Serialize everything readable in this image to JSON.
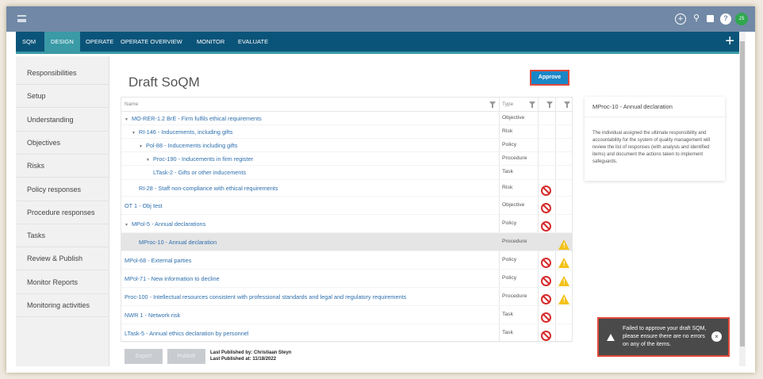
{
  "topbar": {
    "icons": [
      "plus-circle-icon",
      "search-icon",
      "chat-icon",
      "help-icon"
    ],
    "avatar": "JS",
    "avatar_color": "#2fa84f"
  },
  "nav": {
    "tabs": [
      "SQM",
      "DESIGN",
      "OPERATE",
      "OPERATE OVERVIEW",
      "MONITOR",
      "EVALUATE"
    ],
    "active": "DESIGN",
    "add": "+"
  },
  "sidebar": {
    "items": [
      "Responsibilities",
      "Setup",
      "Understanding",
      "Objectives",
      "Risks",
      "Policy responses",
      "Procedure responses",
      "Tasks",
      "Review & Publish",
      "Monitor Reports",
      "Monitoring activities"
    ]
  },
  "main": {
    "title": "Draft SoQM",
    "approve_label": "Approve",
    "table": {
      "headers": {
        "name": "Name",
        "type": "Type"
      },
      "rows": [
        {
          "name": "MO-RER-1.2 BrE - Firm fulfils ethical requirements",
          "type": "Objective",
          "level": 0,
          "expanded": true,
          "error": false,
          "warning": false
        },
        {
          "name": "RI-146 - Inducements, including gifts",
          "type": "Risk",
          "level": 1,
          "expanded": true,
          "error": false,
          "warning": false
        },
        {
          "name": "Pol-88 - Inducements including gifts",
          "type": "Policy",
          "level": 2,
          "expanded": true,
          "error": false,
          "warning": false
        },
        {
          "name": "Proc-190 - Inducements in firm register",
          "type": "Procedure",
          "level": 3,
          "expanded": true,
          "error": false,
          "warning": false
        },
        {
          "name": "LTask-2 - Gifts or other inducements",
          "type": "Task",
          "level": 4,
          "error": false,
          "warning": false
        },
        {
          "name": "RI-28 - Staff non-compliance with ethical requirements",
          "type": "Risk",
          "level": 1,
          "error": true,
          "warning": false
        },
        {
          "name": "OT 1 - Obj test",
          "type": "Objective",
          "level": 0,
          "error": true,
          "warning": false
        },
        {
          "name": "MPol-5 - Annual declarations",
          "type": "Policy",
          "level": 0,
          "expanded": true,
          "error": true,
          "warning": false
        },
        {
          "name": "MProc-10 - Annual declaration",
          "type": "Procedure",
          "level": 1,
          "error": false,
          "warning": true,
          "selected": true
        },
        {
          "name": "MPol-68 - External parties",
          "type": "Policy",
          "level": 0,
          "error": true,
          "warning": true
        },
        {
          "name": "MPol-71 - New information to decline",
          "type": "Policy",
          "level": 0,
          "error": true,
          "warning": true
        },
        {
          "name": "Proc-100 - Intellectual resources consistent with professional standards and legal and regulatory requirements",
          "type": "Procedure",
          "level": 0,
          "error": true,
          "warning": true
        },
        {
          "name": "NWR 1 - Network risk",
          "type": "Task",
          "level": 0,
          "error": true,
          "warning": false
        },
        {
          "name": "LTask-5 - Annual ethics declaration by personnel",
          "type": "Task",
          "level": 0,
          "error": true,
          "warning": false
        }
      ]
    },
    "export_label": "Export",
    "publish_label": "Publish",
    "last_published_by": "Last Published by: Christiaan Steyn",
    "last_published_at": "Last Published at: 11/18/2022"
  },
  "panel": {
    "title": "MProc-10 - Annual declaration",
    "body": "The individual assigned the ultimate responsibility and accountability for the system of quality management will review the list of responses (with analysis and identified items) and document the actions taken to implement safeguards."
  },
  "toast": {
    "message": "Failed to approve your draft SQM, please ensure there are no errors on any of the items.",
    "close": "×"
  }
}
